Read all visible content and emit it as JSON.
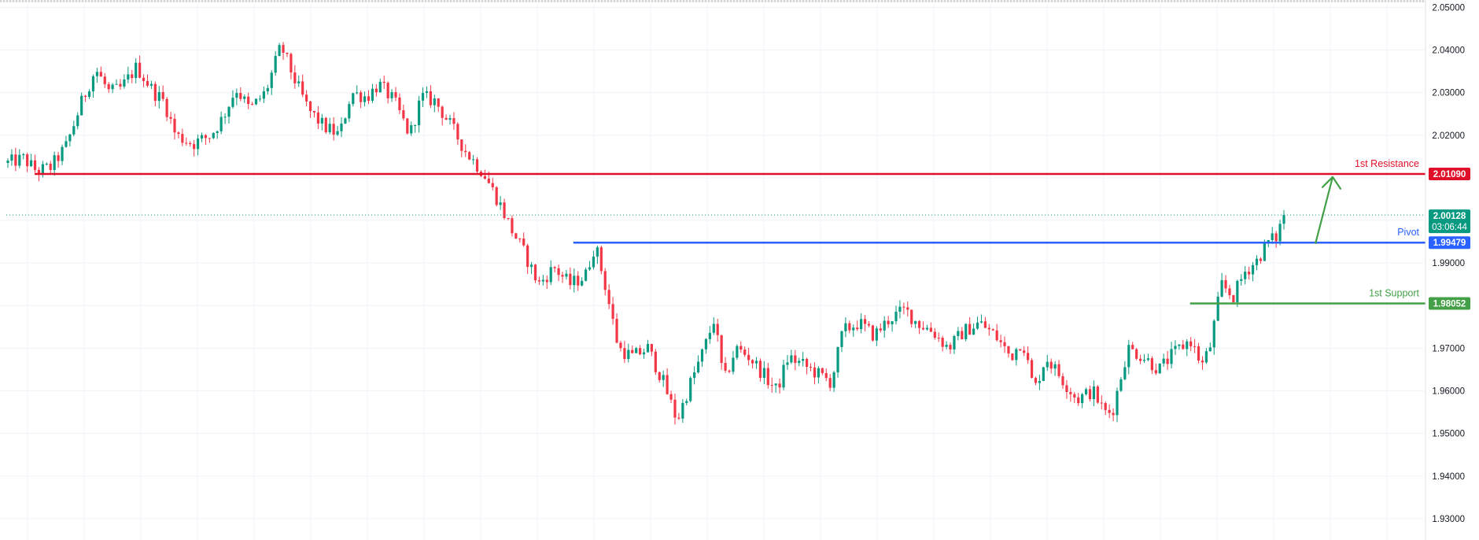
{
  "chart_data": {
    "type": "candlestick",
    "ylim": [
      1.925,
      2.051
    ],
    "y_ticks": [
      "2.05000",
      "2.04000",
      "2.03000",
      "2.02000",
      "1.99000",
      "1.98000",
      "1.97000",
      "1.96000",
      "1.95000",
      "1.94000",
      "1.93000"
    ],
    "y_tick_values": [
      2.05,
      2.04,
      2.03,
      2.02,
      1.99,
      1.98,
      1.97,
      1.96,
      1.95,
      1.94,
      1.93
    ],
    "candle_count": 330,
    "price_path": [
      [
        0,
        2.0135
      ],
      [
        8,
        2.0145
      ],
      [
        15,
        2.0115
      ],
      [
        22,
        2.0125
      ],
      [
        30,
        2.0175
      ],
      [
        38,
        2.028
      ],
      [
        45,
        2.0355
      ],
      [
        52,
        2.03
      ],
      [
        58,
        2.031
      ],
      [
        66,
        2.036
      ],
      [
        75,
        2.03
      ],
      [
        80,
        2.028
      ],
      [
        86,
        2.02
      ],
      [
        95,
        2.018
      ],
      [
        104,
        2.02
      ],
      [
        110,
        2.024
      ],
      [
        117,
        2.031
      ],
      [
        124,
        2.026
      ],
      [
        132,
        2.03
      ],
      [
        140,
        2.041
      ],
      [
        147,
        2.033
      ],
      [
        154,
        2.026
      ],
      [
        162,
        2.022
      ],
      [
        170,
        2.02
      ],
      [
        176,
        2.03
      ],
      [
        184,
        2.029
      ],
      [
        190,
        2.032
      ],
      [
        198,
        2.028
      ],
      [
        206,
        2.02
      ],
      [
        212,
        2.029
      ],
      [
        219,
        2.028
      ],
      [
        226,
        2.023
      ],
      [
        235,
        2.016
      ],
      [
        244,
        2.011
      ],
      [
        252,
        2.004
      ],
      [
        258,
        1.998
      ],
      [
        264,
        1.993
      ],
      [
        272,
        1.985
      ],
      [
        280,
        1.989
      ],
      [
        288,
        1.985
      ],
      [
        296,
        1.987
      ],
      [
        301,
        1.9945
      ],
      [
        306,
        1.985
      ],
      [
        313,
        1.97
      ],
      [
        320,
        1.968
      ],
      [
        328,
        1.97
      ],
      [
        336,
        1.962
      ],
      [
        343,
        1.953
      ],
      [
        350,
        1.962
      ],
      [
        357,
        1.97
      ],
      [
        362,
        1.977
      ],
      [
        367,
        1.962
      ],
      [
        373,
        1.97
      ],
      [
        380,
        1.968
      ],
      [
        387,
        1.964
      ],
      [
        394,
        1.96
      ],
      [
        400,
        1.968
      ],
      [
        408,
        1.966
      ],
      [
        415,
        1.964
      ],
      [
        422,
        1.962
      ],
      [
        428,
        1.974
      ],
      [
        436,
        1.976
      ],
      [
        444,
        1.973
      ],
      [
        452,
        1.977
      ],
      [
        460,
        1.979
      ],
      [
        466,
        1.976
      ],
      [
        474,
        1.974
      ],
      [
        482,
        1.97
      ],
      [
        490,
        1.974
      ],
      [
        498,
        1.976
      ],
      [
        506,
        1.973
      ],
      [
        514,
        1.968
      ],
      [
        520,
        1.972
      ],
      [
        526,
        1.96
      ],
      [
        532,
        1.968
      ],
      [
        540,
        1.963
      ],
      [
        548,
        1.958
      ],
      [
        556,
        1.96
      ],
      [
        562,
        1.955
      ],
      [
        566,
        1.955
      ],
      [
        574,
        1.97
      ],
      [
        582,
        1.968
      ],
      [
        590,
        1.965
      ],
      [
        598,
        1.969
      ],
      [
        606,
        1.972
      ],
      [
        612,
        1.966
      ],
      [
        616,
        1.97
      ],
      [
        622,
        1.985
      ],
      [
        628,
        1.982
      ],
      [
        634,
        1.988
      ],
      [
        640,
        1.9905
      ],
      [
        646,
        1.995
      ],
      [
        650,
        1.996
      ],
      [
        654,
        2.0012
      ]
    ],
    "levels": [
      {
        "label": "1st Resistance",
        "value": "2.01090",
        "price": 2.0109,
        "color": "#e0102a",
        "start_fraction": 0.02
      },
      {
        "label": "Pivot",
        "value": "1.99479",
        "price": 1.99479,
        "color": "#2962ff",
        "start_fraction": 0.4
      },
      {
        "label": "1st Support",
        "value": "1.98052",
        "price": 1.98052,
        "color": "#43a047",
        "start_fraction": 0.835
      }
    ],
    "current_price": {
      "value": "2.00128",
      "price": 2.00128,
      "countdown": "03:06:44",
      "color": "#089981"
    },
    "projection_arrow": {
      "color": "#43a047",
      "from_price": 1.9945,
      "to_price": 2.0102
    },
    "colors": {
      "up": "#089981",
      "down": "#f23645",
      "grid": "#f0f3fa"
    }
  }
}
